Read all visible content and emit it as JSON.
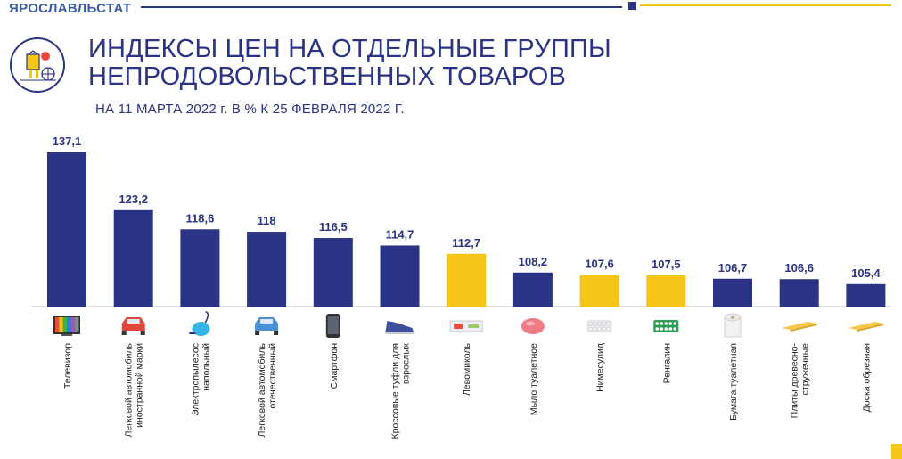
{
  "header": {
    "brand": "ЯРОСЛАВЛЬСТАТ",
    "title_line1": "ИНДЕКСЫ ЦЕН НА ОТДЕЛЬНЫЕ ГРУППЫ",
    "title_line2": "НЕПРОДОВОЛЬСТВЕННЫХ ТОВАРОВ",
    "subtitle": "НА 11 МАРТА 2022 г. В % К 25 ФЕВРАЛЯ 2022 Г."
  },
  "colors": {
    "primary": "#2a3384",
    "highlight": "#f5c518",
    "brand_text": "#3a5ba8"
  },
  "chart_data": {
    "type": "bar",
    "categories": [
      "Телевизор",
      "Легковой автомобиль иностранной марки",
      "Электропылесос напольный",
      "Легковой автомобиль отечественный",
      "Смартфон",
      "Кроссовые туфли для взрослых",
      "Левомиколь",
      "Мыло туалетное",
      "Нимесулид",
      "Ренгалин",
      "Бумага туалетная",
      "Плиты древесно-стружечные",
      "Доска обрезная"
    ],
    "category_lines": [
      [
        "Телевизор"
      ],
      [
        "Легковой автомобиль",
        "иностранной марки"
      ],
      [
        "Электропылесос",
        "напольный"
      ],
      [
        "Легковой автомобиль",
        "отечественный"
      ],
      [
        "Смартфон"
      ],
      [
        "Кроссовые туфли для",
        "взрослых"
      ],
      [
        "Левомиколь"
      ],
      [
        "Мыло туалетное"
      ],
      [
        "Нимесулид"
      ],
      [
        "Ренгалин"
      ],
      [
        "Бумага туалетная"
      ],
      [
        "Плиты древесно-",
        "стружечные"
      ],
      [
        "Доска обрезная"
      ]
    ],
    "values": [
      137.1,
      123.2,
      118.6,
      118,
      116.5,
      114.7,
      112.7,
      108.2,
      107.6,
      107.5,
      106.7,
      106.6,
      105.4
    ],
    "value_labels": [
      "137,1",
      "123,2",
      "118,6",
      "118",
      "116,5",
      "114,7",
      "112,7",
      "108,2",
      "107,6",
      "107,5",
      "106,7",
      "106,6",
      "105,4"
    ],
    "highlighted": [
      false,
      false,
      false,
      false,
      false,
      false,
      true,
      false,
      true,
      true,
      false,
      false,
      false
    ],
    "icons": [
      "tv-icon",
      "car-icon",
      "vacuum-cleaner-icon",
      "car-icon",
      "smartphone-icon",
      "sneaker-icon",
      "ointment-tube-icon",
      "soap-icon",
      "pill-blister-icon",
      "pill-blister-icon",
      "toilet-paper-icon",
      "chipboard-icon",
      "wooden-plank-icon"
    ],
    "baseline": 100,
    "ylim": [
      100,
      138
    ],
    "grid": false,
    "title": "",
    "xlabel": "",
    "ylabel": ""
  }
}
